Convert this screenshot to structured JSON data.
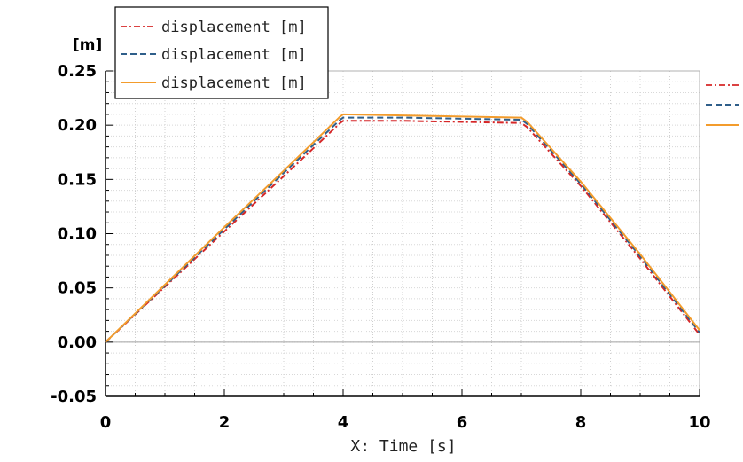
{
  "chart_data": {
    "type": "line",
    "xlabel": "X: Time [s]",
    "ylabel": "[m]",
    "xlim": [
      0,
      10
    ],
    "ylim": [
      -0.05,
      0.25
    ],
    "xticks": [
      "0",
      "2",
      "4",
      "6",
      "8",
      "10"
    ],
    "yticks": [
      "-0.05",
      "0.00",
      "0.05",
      "0.10",
      "0.15",
      "0.20",
      "0.25"
    ],
    "grid": true,
    "legend_position": "top-left, outside plot",
    "series": [
      {
        "name": "displacement [m]",
        "color": "#d62728",
        "style": "dashdot",
        "x": [
          0,
          1,
          2,
          3,
          3.95,
          4.0,
          5.0,
          6.0,
          7.0,
          7.1,
          8.0,
          9.0,
          10.0
        ],
        "y": [
          0.0,
          0.051,
          0.102,
          0.153,
          0.202,
          0.204,
          0.204,
          0.203,
          0.202,
          0.198,
          0.144,
          0.077,
          0.007
        ]
      },
      {
        "name": "displacement [m]",
        "color": "#2f5f8a",
        "style": "dashed",
        "x": [
          0,
          1,
          2,
          3,
          3.95,
          4.0,
          5.0,
          6.0,
          7.0,
          7.1,
          8.0,
          9.0,
          10.0
        ],
        "y": [
          0.0,
          0.052,
          0.104,
          0.156,
          0.205,
          0.207,
          0.207,
          0.206,
          0.205,
          0.201,
          0.146,
          0.079,
          0.009
        ]
      },
      {
        "name": "displacement [m]",
        "color": "#f39c2c",
        "style": "solid",
        "x": [
          0,
          1,
          2,
          3,
          3.95,
          4.0,
          5.0,
          6.0,
          7.0,
          7.1,
          8.0,
          9.0,
          10.0
        ],
        "y": [
          0.0,
          0.053,
          0.106,
          0.158,
          0.208,
          0.21,
          0.209,
          0.208,
          0.207,
          0.203,
          0.148,
          0.081,
          0.011
        ]
      }
    ]
  }
}
